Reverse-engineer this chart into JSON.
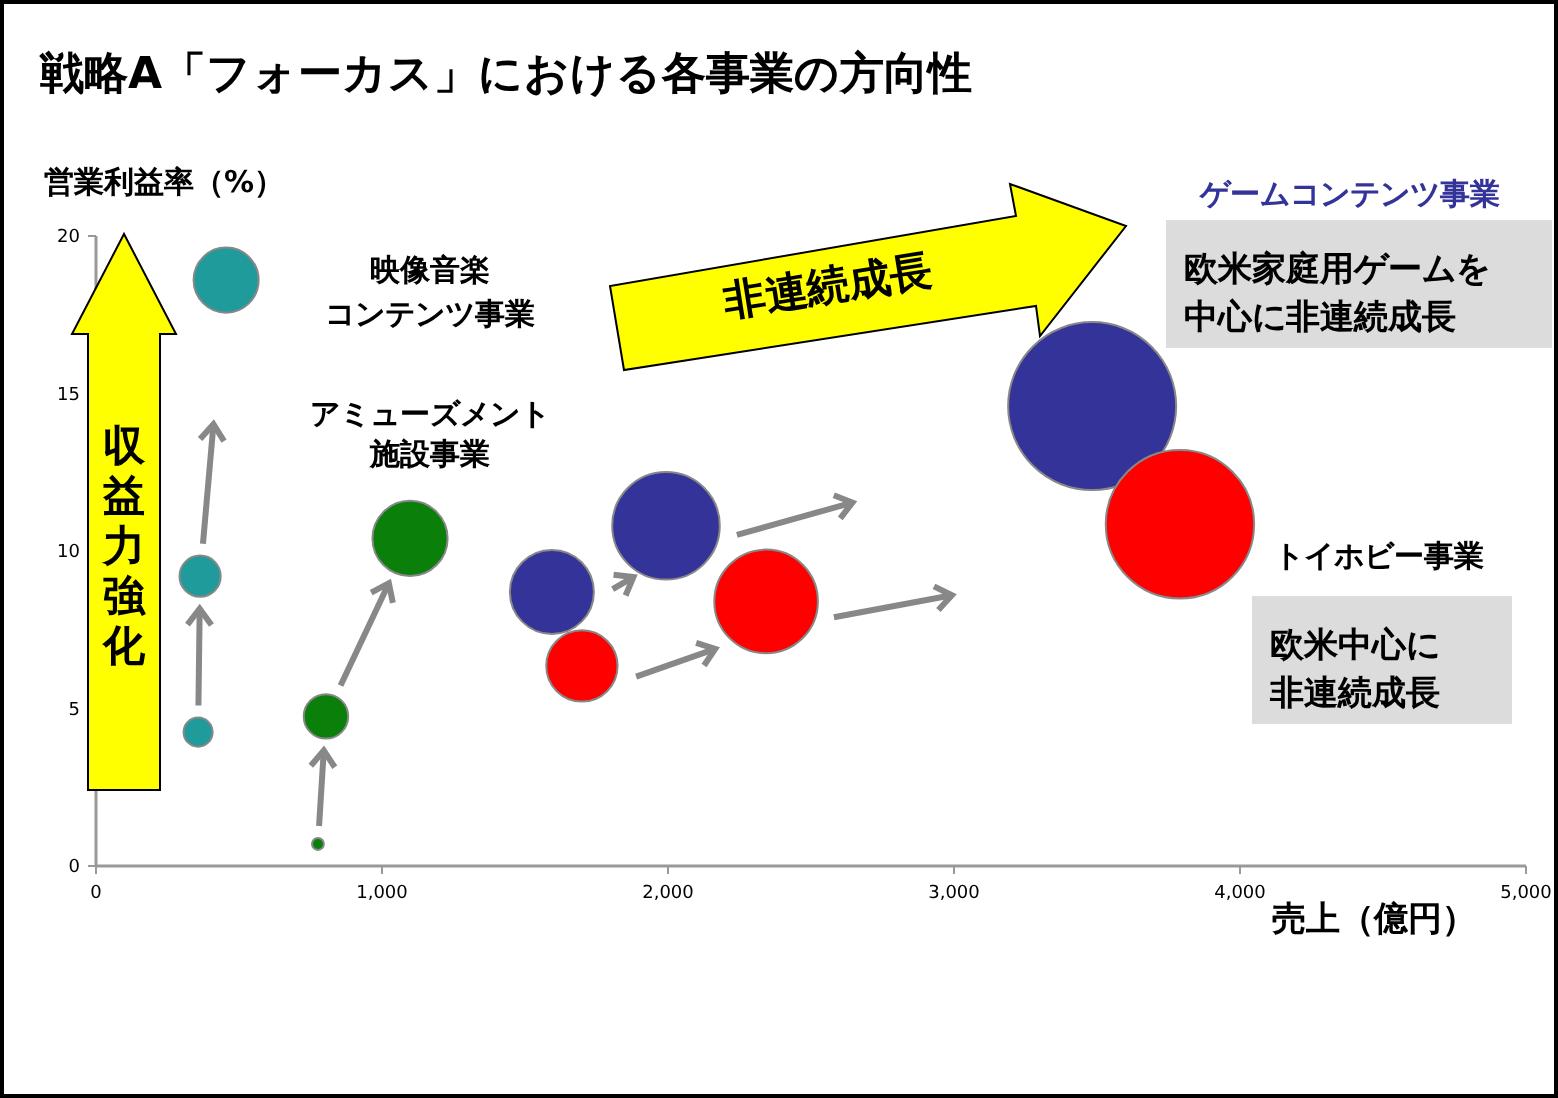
{
  "chart_data": {
    "type": "bubble",
    "title": "戦略A「フォーカス」における各事業の方向性",
    "xlabel": "売上（億円）",
    "ylabel": "営業利益率（%）",
    "xlim": [
      0,
      5000
    ],
    "ylim": [
      0,
      20
    ],
    "xticks": [
      0,
      {
        "value": 1000,
        "label": "1,000"
      },
      {
        "value": 2000,
        "label": "2,000"
      },
      {
        "value": 3000,
        "label": "3,000"
      },
      {
        "value": 4000,
        "label": "4,000"
      },
      {
        "value": 5000,
        "label": "5,000"
      }
    ],
    "yticks": [
      0,
      5,
      10,
      15,
      20
    ],
    "grid": false,
    "series": [
      {
        "name": "映像音楽コンテンツ事業",
        "color": "#1f9b9b",
        "x": [
          357,
          364,
          455
        ],
        "values": [
          4.25,
          9.2,
          18.6
        ],
        "sizes": [
          0.03,
          0.06,
          0.15
        ]
      },
      {
        "name": "アミューズメント施設事業",
        "color": "#0a800a",
        "x": [
          776,
          804,
          1098
        ],
        "values": [
          0.7,
          4.75,
          10.4
        ],
        "sizes": [
          0.005,
          0.07,
          0.2
        ]
      },
      {
        "name": "ゲームコンテンツ事業",
        "color": "#333399",
        "x": [
          1594,
          1993,
          3483
        ],
        "values": [
          8.7,
          10.8,
          14.6
        ],
        "sizes": [
          0.25,
          0.41,
          1
        ]
      },
      {
        "name": "トイホビー事業",
        "color": "#ff0000",
        "x": [
          1699,
          2343,
          3790
        ],
        "values": [
          6.35,
          8.4,
          10.85
        ],
        "sizes": [
          0.18,
          0.38,
          0.78
        ]
      }
    ],
    "annotations": [
      "収益力強化",
      "非連続成長",
      "欧米家庭用ゲームを中心に非連続成長",
      "欧米中心に非連続成長"
    ]
  }
}
